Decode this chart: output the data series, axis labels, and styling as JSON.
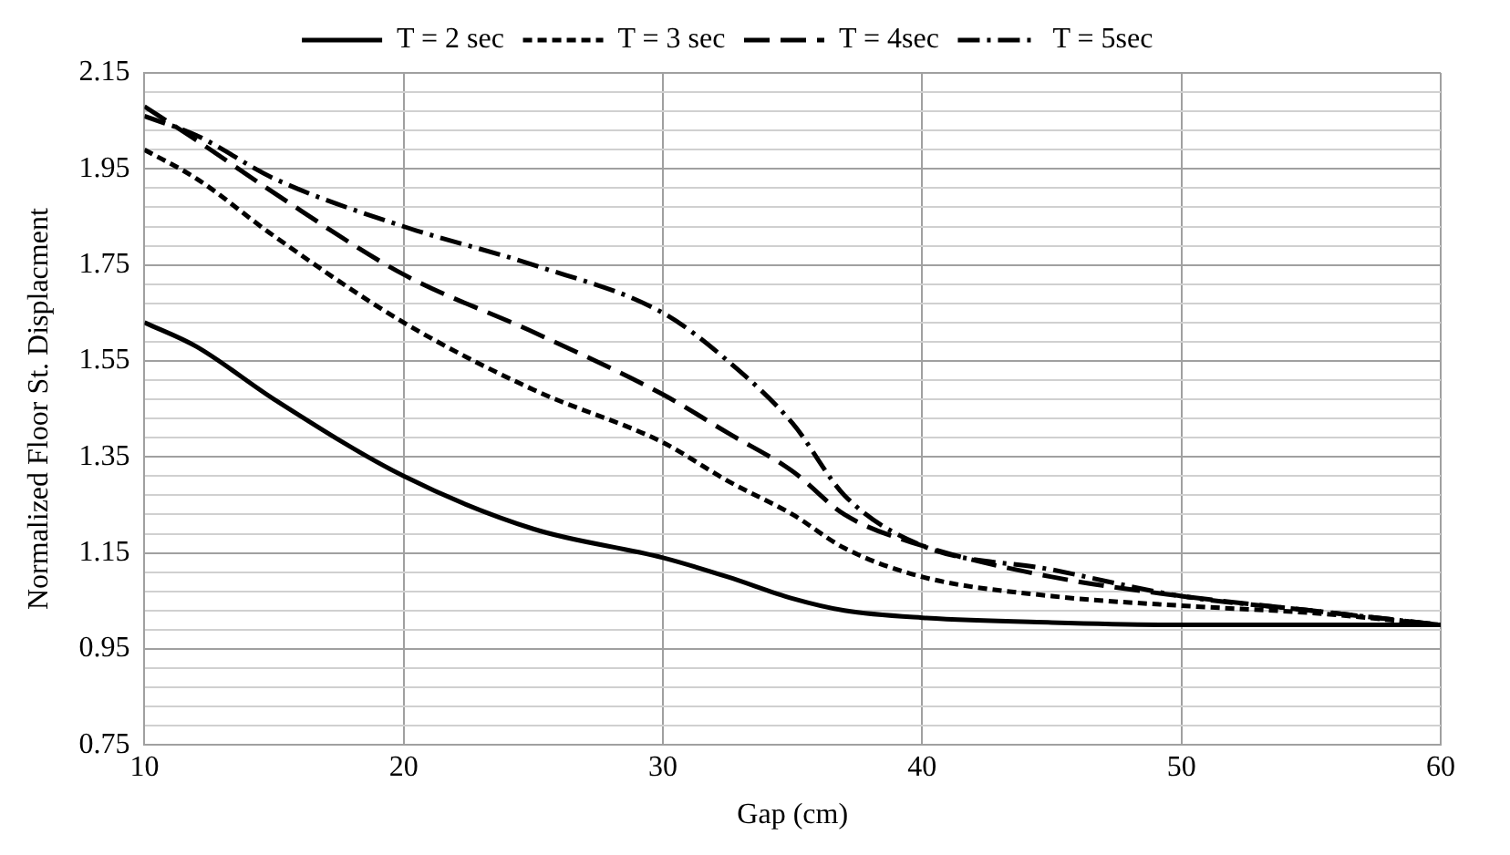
{
  "chart_data": {
    "type": "line",
    "xlabel": "Gap (cm)",
    "ylabel": "Normalized Floor St. Displacment",
    "x": [
      10,
      12,
      15,
      20,
      25,
      30,
      32.5,
      35,
      37,
      40,
      45,
      50,
      55,
      60
    ],
    "series": [
      {
        "name": "T = 2 sec",
        "color": "#000000",
        "line_style": "solid",
        "values": [
          1.63,
          1.58,
          1.47,
          1.31,
          1.2,
          1.14,
          1.1,
          1.055,
          1.03,
          1.015,
          1.005,
          1.0,
          1.0,
          1.0
        ]
      },
      {
        "name": "T = 3 sec",
        "color": "#000000",
        "line_style": "dotted",
        "values": [
          1.99,
          1.93,
          1.81,
          1.63,
          1.49,
          1.38,
          1.3,
          1.23,
          1.16,
          1.1,
          1.06,
          1.04,
          1.025,
          1.0
        ]
      },
      {
        "name": "T = 4sec",
        "color": "#000000",
        "line_style": "dashed",
        "values": [
          2.08,
          2.01,
          1.9,
          1.73,
          1.61,
          1.48,
          1.4,
          1.32,
          1.23,
          1.165,
          1.1,
          1.06,
          1.03,
          1.0
        ]
      },
      {
        "name": "T = 5sec",
        "color": "#000000",
        "line_style": "dashdot",
        "values": [
          2.06,
          2.02,
          1.93,
          1.83,
          1.75,
          1.65,
          1.55,
          1.42,
          1.27,
          1.165,
          1.115,
          1.06,
          1.03,
          1.0
        ]
      }
    ],
    "xlim": [
      10,
      60
    ],
    "xticks": [
      10,
      20,
      30,
      40,
      50,
      60
    ],
    "ylim": [
      0.75,
      2.15
    ],
    "yticks": [
      {
        "value": 0.75,
        "label": "0.75"
      },
      {
        "value": 0.79,
        "label": null
      },
      {
        "value": 0.83,
        "label": null
      },
      {
        "value": 0.87,
        "label": null
      },
      {
        "value": 0.91,
        "label": null
      },
      {
        "value": 0.95,
        "label": "0.95"
      },
      {
        "value": 0.99,
        "label": null
      },
      {
        "value": 1.03,
        "label": null
      },
      {
        "value": 1.07,
        "label": null
      },
      {
        "value": 1.11,
        "label": null
      },
      {
        "value": 1.15,
        "label": "1.15"
      },
      {
        "value": 1.19,
        "label": null
      },
      {
        "value": 1.23,
        "label": null
      },
      {
        "value": 1.27,
        "label": null
      },
      {
        "value": 1.31,
        "label": null
      },
      {
        "value": 1.35,
        "label": "1.35"
      },
      {
        "value": 1.39,
        "label": null
      },
      {
        "value": 1.43,
        "label": null
      },
      {
        "value": 1.47,
        "label": null
      },
      {
        "value": 1.51,
        "label": null
      },
      {
        "value": 1.55,
        "label": "1.55"
      },
      {
        "value": 1.59,
        "label": null
      },
      {
        "value": 1.63,
        "label": null
      },
      {
        "value": 1.67,
        "label": null
      },
      {
        "value": 1.71,
        "label": null
      },
      {
        "value": 1.75,
        "label": "1.75"
      },
      {
        "value": 1.79,
        "label": null
      },
      {
        "value": 1.83,
        "label": null
      },
      {
        "value": 1.87,
        "label": null
      },
      {
        "value": 1.91,
        "label": null
      },
      {
        "value": 1.95,
        "label": "1.95"
      },
      {
        "value": 1.99,
        "label": null
      },
      {
        "value": 2.03,
        "label": null
      },
      {
        "value": 2.07,
        "label": null
      },
      {
        "value": 2.11,
        "label": null
      },
      {
        "value": 2.15,
        "label": "2.15"
      }
    ],
    "grid": true,
    "legend": "top",
    "marker": "none"
  }
}
